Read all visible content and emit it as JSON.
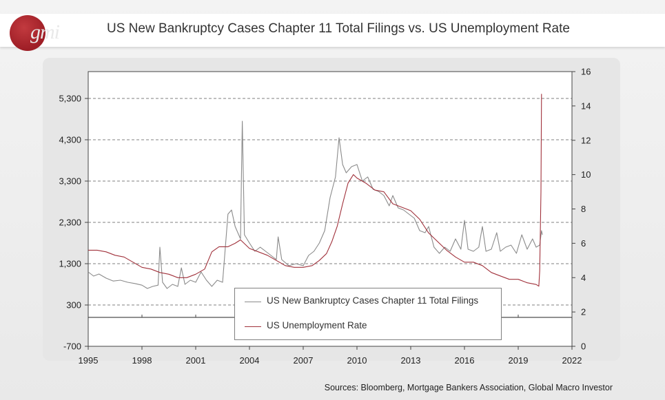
{
  "header": {
    "logo_text": "gmi",
    "title": "US New Bankruptcy Cases Chapter 11 Total Filings vs. US Unemployment Rate"
  },
  "footer": {
    "source": "Sources: Bloomberg, Mortgage Bankers Association, Global Macro Investor"
  },
  "colors": {
    "filings": "#8a8a8a",
    "unemployment": "#a0303a",
    "gridline": "#555555",
    "background": "#ffffff"
  },
  "chart_data": {
    "type": "line",
    "title": "US New Bankruptcy Cases Chapter 11 Total Filings vs. US Unemployment Rate",
    "x_ticks": [
      "1995",
      "1998",
      "2001",
      "2004",
      "2007",
      "2010",
      "2013",
      "2016",
      "2019",
      "2022"
    ],
    "x_range": [
      1995,
      2022
    ],
    "y_left": {
      "range": [
        -700,
        5950
      ],
      "ticks": [
        "-700",
        "300",
        "1,300",
        "2,300",
        "3,300",
        "4,300",
        "5,300"
      ],
      "tick_values": [
        -700,
        300,
        1300,
        2300,
        3300,
        4300,
        5300
      ]
    },
    "y_right": {
      "range": [
        0,
        16
      ],
      "ticks": [
        "0",
        "2",
        "4",
        "6",
        "8",
        "10",
        "12",
        "14",
        "16"
      ],
      "tick_values": [
        0,
        2,
        4,
        6,
        8,
        10,
        12,
        14,
        16
      ]
    },
    "grid": "dashed horizontal at left-axis ticks",
    "legend": "bottom-center",
    "series": [
      {
        "name": "US New Bankruptcy Cases Chapter 11 Total Filings",
        "axis": "left",
        "color": "#8a8a8a",
        "points": [
          [
            1995.0,
            1100
          ],
          [
            1995.3,
            1000
          ],
          [
            1995.6,
            1050
          ],
          [
            1996.0,
            950
          ],
          [
            1996.4,
            880
          ],
          [
            1996.8,
            900
          ],
          [
            1997.2,
            850
          ],
          [
            1997.6,
            820
          ],
          [
            1998.0,
            780
          ],
          [
            1998.3,
            700
          ],
          [
            1998.6,
            750
          ],
          [
            1998.9,
            780
          ],
          [
            1999.0,
            1700
          ],
          [
            1999.15,
            850
          ],
          [
            1999.4,
            700
          ],
          [
            1999.7,
            800
          ],
          [
            2000.0,
            750
          ],
          [
            2000.2,
            1200
          ],
          [
            2000.4,
            800
          ],
          [
            2000.7,
            900
          ],
          [
            2001.0,
            850
          ],
          [
            2001.3,
            1100
          ],
          [
            2001.6,
            900
          ],
          [
            2001.9,
            750
          ],
          [
            2002.2,
            900
          ],
          [
            2002.5,
            850
          ],
          [
            2002.8,
            2500
          ],
          [
            2003.0,
            2600
          ],
          [
            2003.2,
            2200
          ],
          [
            2003.5,
            1900
          ],
          [
            2003.6,
            4750
          ],
          [
            2003.72,
            2000
          ],
          [
            2004.0,
            1800
          ],
          [
            2004.3,
            1600
          ],
          [
            2004.6,
            1700
          ],
          [
            2004.9,
            1600
          ],
          [
            2005.2,
            1500
          ],
          [
            2005.5,
            1400
          ],
          [
            2005.6,
            1950
          ],
          [
            2005.8,
            1400
          ],
          [
            2006.2,
            1250
          ],
          [
            2006.6,
            1300
          ],
          [
            2007.0,
            1250
          ],
          [
            2007.3,
            1500
          ],
          [
            2007.6,
            1600
          ],
          [
            2007.9,
            1800
          ],
          [
            2008.2,
            2100
          ],
          [
            2008.5,
            2900
          ],
          [
            2008.8,
            3400
          ],
          [
            2009.0,
            4350
          ],
          [
            2009.2,
            3700
          ],
          [
            2009.4,
            3500
          ],
          [
            2009.7,
            3650
          ],
          [
            2010.0,
            3700
          ],
          [
            2010.3,
            3300
          ],
          [
            2010.6,
            3400
          ],
          [
            2010.9,
            3100
          ],
          [
            2011.2,
            3050
          ],
          [
            2011.5,
            2950
          ],
          [
            2011.8,
            2700
          ],
          [
            2012.0,
            2950
          ],
          [
            2012.3,
            2650
          ],
          [
            2012.6,
            2600
          ],
          [
            2012.9,
            2500
          ],
          [
            2013.2,
            2400
          ],
          [
            2013.5,
            2100
          ],
          [
            2013.8,
            2050
          ],
          [
            2014.0,
            2200
          ],
          [
            2014.3,
            1700
          ],
          [
            2014.6,
            1550
          ],
          [
            2014.9,
            1700
          ],
          [
            2015.2,
            1600
          ],
          [
            2015.5,
            1900
          ],
          [
            2015.8,
            1650
          ],
          [
            2016.0,
            2350
          ],
          [
            2016.2,
            1650
          ],
          [
            2016.5,
            1600
          ],
          [
            2016.8,
            1700
          ],
          [
            2017.0,
            2200
          ],
          [
            2017.2,
            1600
          ],
          [
            2017.5,
            1650
          ],
          [
            2017.8,
            2050
          ],
          [
            2018.0,
            1600
          ],
          [
            2018.3,
            1700
          ],
          [
            2018.6,
            1750
          ],
          [
            2018.9,
            1550
          ],
          [
            2019.2,
            2000
          ],
          [
            2019.5,
            1650
          ],
          [
            2019.8,
            1900
          ],
          [
            2020.0,
            1700
          ],
          [
            2020.2,
            1750
          ],
          [
            2020.3,
            2100
          ],
          [
            2020.35,
            2000
          ]
        ]
      },
      {
        "name": "US Unemployment Rate",
        "axis": "right",
        "color": "#a0303a",
        "points": [
          [
            1995.0,
            5.6
          ],
          [
            1995.5,
            5.6
          ],
          [
            1996.0,
            5.5
          ],
          [
            1996.5,
            5.3
          ],
          [
            1997.0,
            5.2
          ],
          [
            1997.5,
            4.9
          ],
          [
            1998.0,
            4.6
          ],
          [
            1998.5,
            4.5
          ],
          [
            1999.0,
            4.3
          ],
          [
            1999.5,
            4.2
          ],
          [
            2000.0,
            4.0
          ],
          [
            2000.5,
            4.0
          ],
          [
            2001.0,
            4.2
          ],
          [
            2001.5,
            4.5
          ],
          [
            2001.9,
            5.5
          ],
          [
            2002.3,
            5.8
          ],
          [
            2002.8,
            5.8
          ],
          [
            2003.2,
            6.0
          ],
          [
            2003.5,
            6.2
          ],
          [
            2004.0,
            5.7
          ],
          [
            2004.5,
            5.5
          ],
          [
            2005.0,
            5.3
          ],
          [
            2005.5,
            5.0
          ],
          [
            2006.0,
            4.7
          ],
          [
            2006.5,
            4.6
          ],
          [
            2007.0,
            4.6
          ],
          [
            2007.5,
            4.7
          ],
          [
            2007.9,
            5.0
          ],
          [
            2008.3,
            5.4
          ],
          [
            2008.6,
            6.1
          ],
          [
            2008.9,
            7.0
          ],
          [
            2009.2,
            8.3
          ],
          [
            2009.5,
            9.5
          ],
          [
            2009.8,
            10.0
          ],
          [
            2010.0,
            9.8
          ],
          [
            2010.5,
            9.5
          ],
          [
            2011.0,
            9.1
          ],
          [
            2011.5,
            9.0
          ],
          [
            2012.0,
            8.3
          ],
          [
            2012.5,
            8.1
          ],
          [
            2013.0,
            7.9
          ],
          [
            2013.5,
            7.4
          ],
          [
            2014.0,
            6.6
          ],
          [
            2014.5,
            6.1
          ],
          [
            2015.0,
            5.6
          ],
          [
            2015.5,
            5.2
          ],
          [
            2016.0,
            4.9
          ],
          [
            2016.5,
            4.9
          ],
          [
            2017.0,
            4.7
          ],
          [
            2017.5,
            4.3
          ],
          [
            2018.0,
            4.1
          ],
          [
            2018.5,
            3.9
          ],
          [
            2019.0,
            3.9
          ],
          [
            2019.5,
            3.7
          ],
          [
            2020.0,
            3.6
          ],
          [
            2020.15,
            3.5
          ],
          [
            2020.2,
            4.4
          ],
          [
            2020.27,
            9.0
          ],
          [
            2020.3,
            14.7
          ]
        ]
      }
    ]
  }
}
